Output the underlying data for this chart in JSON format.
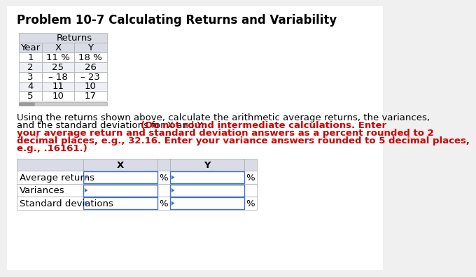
{
  "title": "Problem 10-7 Calculating Returns and Variability",
  "title_fontsize": 12,
  "bg_color": "#f0f0f0",
  "content_bg": "#ffffff",
  "table1": {
    "col_headers": [
      "Year",
      "X",
      "Y"
    ],
    "rows": [
      [
        "1",
        "11 %",
        "18 %"
      ],
      [
        "2",
        "25",
        "26"
      ],
      [
        "3",
        "– 18",
        "– 23"
      ],
      [
        "4",
        "11",
        "10"
      ],
      [
        "5",
        "10",
        "17"
      ]
    ],
    "header_bg": "#d9dce6",
    "row_alt_bg": "#eef0f5",
    "cell_bg": "#ffffff",
    "border_color": "#aaaaaa"
  },
  "para_line1": "Using the returns shown above, calculate the arithmetic average returns, the variances,",
  "para_line2_normal": "and the standard deviations for X and Y. ",
  "para_line2_red": "(Do not round intermediate calculations. Enter",
  "para_line3": "your average return and standard deviation answers as a percent rounded to 2",
  "para_line4": "decimal places, e.g., 32.16. Enter your variance answers rounded to 5 decimal places,",
  "para_line5": "e.g., .16161.)",
  "table2": {
    "col_headers": [
      "",
      "X",
      "",
      "Y",
      ""
    ],
    "rows": [
      [
        "Average returns",
        "",
        "%",
        "",
        "%"
      ],
      [
        "Variances",
        "",
        "",
        "",
        ""
      ],
      [
        "Standard deviations",
        "",
        "%",
        "",
        "%"
      ]
    ],
    "header_bg": "#d9dce6",
    "label_bg": "#ffffff",
    "input_bg": "#ffffff",
    "border_color": "#aaaaaa",
    "input_border": "#4472c4"
  },
  "text_black": "#000000",
  "text_red": "#cc0000",
  "font_size_title": 12,
  "font_size_body": 9.5,
  "font_size_table": 9.5,
  "triangle_color": "#4472c4"
}
